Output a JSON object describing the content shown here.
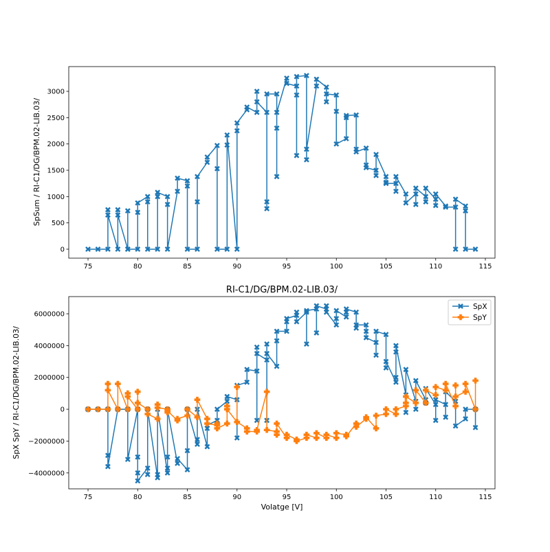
{
  "chart_data": [
    {
      "type": "line",
      "title": "",
      "xlabel": "",
      "ylabel": "SpSum / RI-C1/DG/BPM.02-LIB.03/",
      "xlim": [
        73.06,
        115.97
      ],
      "ylim": [
        -170,
        3470
      ],
      "xticks": [
        75,
        80,
        85,
        90,
        95,
        100,
        105,
        110,
        115
      ],
      "yticks": [
        0,
        500,
        1000,
        1500,
        2000,
        2500,
        3000
      ],
      "grid": false,
      "series": [
        {
          "name": "SpSum",
          "color": "#1f77b4",
          "marker": "X",
          "x": [
            75,
            76,
            77,
            78,
            79,
            80,
            81,
            82,
            83,
            84,
            85,
            86,
            87,
            88,
            89,
            90,
            91,
            92,
            93,
            94,
            95,
            96,
            97,
            98,
            99,
            100,
            101,
            102,
            103,
            104,
            105,
            106,
            107,
            108,
            109,
            110,
            111,
            112,
            113,
            114
          ],
          "y": [
            [
              0
            ],
            [
              0
            ],
            [
              0,
              750,
              650
            ],
            [
              0,
              750,
              650
            ],
            [
              0,
              730,
              0
            ],
            [
              0,
              700,
              880
            ],
            [
              1000,
              900,
              0
            ],
            [
              0,
              1000,
              1080
            ],
            [
              1000,
              850,
              0
            ],
            [
              1100,
              1350
            ],
            [
              1300,
              1200,
              0
            ],
            [
              0,
              900,
              1380
            ],
            [
              1650,
              1750
            ],
            [
              1970,
              1530,
              0
            ],
            [
              0,
              1980,
              2170
            ],
            [
              0,
              2250,
              2400
            ],
            [
              2650,
              2700
            ],
            [
              2600,
              3000,
              2800
            ],
            [
              2600,
              770,
              900,
              2950
            ],
            [
              2950,
              2300,
              1380,
              2600
            ],
            [
              3250,
              3150
            ],
            [
              3100,
              1780,
              2930,
              3280
            ],
            [
              3300,
              1700,
              1900
            ],
            [
              3100,
              3230
            ],
            [
              3080,
              2800,
              2950
            ],
            [
              2930,
              2620,
              2000
            ],
            [
              2100,
              2500,
              2540
            ],
            [
              2550,
              1900,
              1850
            ],
            [
              1920,
              1600,
              1550
            ],
            [
              1500,
              1400,
              1800
            ],
            [
              1380,
              1270,
              1250
            ],
            [
              1250,
              1100,
              1380
            ],
            [
              1050,
              880
            ],
            [
              1050,
              850,
              1160
            ],
            [
              1000,
              900,
              1160
            ],
            [
              950,
              830,
              1050
            ],
            [
              820,
              800
            ],
            [
              800,
              0,
              950
            ],
            [
              820,
              730,
              0
            ],
            [
              0
            ]
          ]
        }
      ]
    },
    {
      "type": "line",
      "title": "RI-C1/DG/BPM.02-LIB.03/",
      "xlabel": "Volatge [V]",
      "ylabel": "SpX SpY / RI-C1/DG/BPM.02-LIB.03/",
      "xlim": [
        73.06,
        115.97
      ],
      "ylim": [
        -5000000,
        7080000
      ],
      "xticks": [
        75,
        80,
        85,
        90,
        95,
        100,
        105,
        110,
        115
      ],
      "yticks": [
        -4000000,
        -2000000,
        0,
        2000000,
        4000000,
        6000000
      ],
      "ytick_labels": [
        "−4000000",
        "−2000000",
        "0",
        "2000000",
        "4000000",
        "6000000"
      ],
      "grid": false,
      "legend": "top-right",
      "unit_scale": 1000000,
      "series": [
        {
          "name": "SpX",
          "color": "#1f77b4",
          "marker": "X",
          "x": [
            75,
            76,
            77,
            78,
            79,
            80,
            81,
            82,
            83,
            84,
            85,
            86,
            87,
            88,
            89,
            90,
            91,
            92,
            93,
            94,
            95,
            96,
            97,
            98,
            99,
            100,
            101,
            102,
            103,
            104,
            105,
            106,
            107,
            108,
            109,
            110,
            111,
            112,
            113,
            114
          ],
          "y": [
            [
              0
            ],
            [
              0
            ],
            [
              0,
              -2.9,
              -3.6
            ],
            [
              0
            ],
            [
              0,
              -3.15
            ],
            [
              0,
              -3.0,
              -4.0,
              -4.5
            ],
            [
              -3.7,
              -4.1,
              0
            ],
            [
              -4.3,
              -4.1,
              0
            ],
            [
              -4.0,
              -3.7,
              -3.0,
              0
            ],
            [
              -3.4,
              -3.1
            ],
            [
              -3.8,
              -2.6,
              0
            ],
            [
              -2.2,
              -1.9,
              0
            ],
            [
              -2.35,
              -1.2,
              -1.0
            ],
            [
              -0.7,
              0
            ],
            [
              0.5,
              0.8
            ],
            [
              0.6,
              -1.8,
              1.5
            ],
            [
              1.7,
              2.5
            ],
            [
              2.4,
              -0.7,
              3.9,
              3.5
            ],
            [
              3.1,
              -0.7,
              4.1,
              3.5
            ],
            [
              2.7,
              4.3,
              4.9
            ],
            [
              4.9,
              5.5,
              5.7
            ],
            [
              5.9,
              6.1,
              5.5
            ],
            [
              6.1,
              4.1,
              6.2
            ],
            [
              6.3,
              4.8,
              6.5
            ],
            [
              6.3,
              6.5,
              6.1
            ],
            [
              5.3,
              5.7,
              6.2
            ],
            [
              5.8,
              6.1,
              6.3
            ],
            [
              6.1,
              5.1,
              5.3
            ],
            [
              5.3,
              4.9,
              4.5
            ],
            [
              4.2,
              3.4,
              4.9
            ],
            [
              4.7,
              2.6,
              3.0
            ],
            [
              1.7,
              2.0,
              3.6,
              4.0
            ],
            [
              0.9,
              -0.2,
              2.5
            ],
            [
              0.5,
              0,
              1.8
            ],
            [
              0.6,
              0.4,
              1.3
            ],
            [
              0.3,
              -0.7,
              0.6
            ],
            [
              0.3,
              -0.5,
              1.1
            ],
            [
              0.5,
              -1.05
            ],
            [
              -0.6,
              0
            ],
            [
              0,
              -1.15
            ]
          ]
        },
        {
          "name": "SpY",
          "color": "#ff7f0e",
          "marker": "P",
          "x": [
            75,
            76,
            77,
            78,
            79,
            80,
            81,
            82,
            83,
            84,
            85,
            86,
            87,
            88,
            89,
            90,
            91,
            92,
            93,
            94,
            95,
            96,
            97,
            98,
            99,
            100,
            101,
            102,
            103,
            104,
            105,
            106,
            107,
            108,
            109,
            110,
            111,
            112,
            113,
            114
          ],
          "y": [
            [
              0
            ],
            [
              0
            ],
            [
              0,
              1.6,
              1.2
            ],
            [
              0,
              1.6
            ],
            [
              0,
              1.0,
              0.8
            ],
            [
              0,
              1.1,
              0.4
            ],
            [
              0,
              -0.3
            ],
            [
              -0.6,
              0.3,
              0.1
            ],
            [
              0,
              -0.2,
              -0.1
            ],
            [
              -0.7,
              -0.6
            ],
            [
              -0.4,
              0
            ],
            [
              -0.5,
              0.6
            ],
            [
              -0.6,
              -0.9
            ],
            [
              -1.0,
              -0.9,
              -1.2
            ],
            [
              -0.9,
              0.2,
              0
            ],
            [
              -0.8,
              1.4,
              -0.8
            ],
            [
              -1.2,
              -1.4
            ],
            [
              -1.4,
              -1.3
            ],
            [
              1.1,
              -1.3
            ],
            [
              -1.4,
              -1.6,
              -0.9
            ],
            [
              -1.8,
              -1.6
            ],
            [
              -1.9,
              -2.0
            ],
            [
              -1.8,
              -1.6
            ],
            [
              -1.8,
              -1.5
            ],
            [
              -1.8,
              -1.6
            ],
            [
              -1.8,
              -1.5
            ],
            [
              -1.6,
              -1.7
            ],
            [
              -0.9,
              -1.1
            ],
            [
              -0.6,
              -0.5
            ],
            [
              -1.2,
              -0.4
            ],
            [
              -0.3,
              0
            ],
            [
              -0.3,
              0
            ],
            [
              0.2,
              0.4,
              0.8
            ],
            [
              0.4,
              1.2
            ],
            [
              0.4,
              1.2
            ],
            [
              0.9,
              1.4
            ],
            [
              1.2,
              1.6
            ],
            [
              0.2,
              1.5,
              0.8
            ],
            [
              1.1,
              1.6
            ],
            [
              0,
              1.8
            ]
          ]
        }
      ]
    }
  ]
}
